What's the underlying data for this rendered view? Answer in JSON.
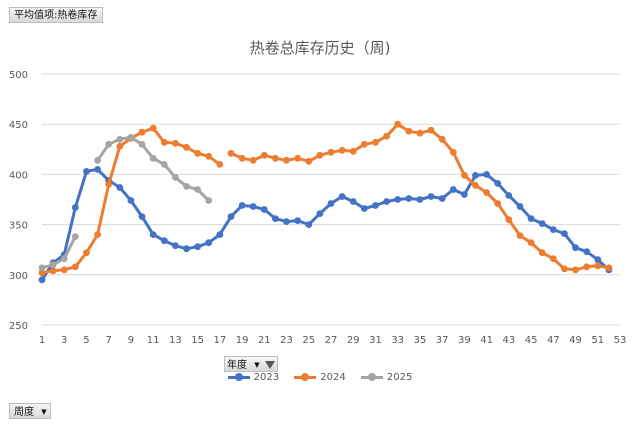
{
  "pivot": {
    "value_field": "平均值项:热卷库存",
    "series_field": "年度",
    "axis_field": "周度"
  },
  "legend": [
    "2023",
    "2024",
    "2025"
  ],
  "chart_data": {
    "type": "line",
    "title": "热卷总库存历史（周)",
    "xlabel": "",
    "ylabel": "",
    "ylim": [
      250,
      500
    ],
    "yticks": [
      250,
      300,
      350,
      400,
      450,
      500
    ],
    "xticks": [
      1,
      3,
      5,
      7,
      9,
      11,
      13,
      15,
      17,
      19,
      21,
      23,
      25,
      27,
      29,
      31,
      33,
      35,
      37,
      39,
      41,
      43,
      45,
      47,
      49,
      51,
      53
    ],
    "xlim": [
      1,
      53
    ],
    "grid": "horizontal",
    "legend_position": "bottom",
    "series": [
      {
        "name": "2023",
        "color": "#4472C4",
        "x": [
          1,
          2,
          3,
          4,
          5,
          6,
          7,
          8,
          9,
          10,
          11,
          12,
          13,
          14,
          15,
          16,
          17,
          18,
          19,
          20,
          21,
          22,
          23,
          24,
          25,
          26,
          27,
          28,
          29,
          30,
          31,
          32,
          33,
          34,
          35,
          36,
          37,
          38,
          39,
          40,
          41,
          42,
          43,
          44,
          45,
          46,
          47,
          48,
          49,
          50,
          51,
          52
        ],
        "values": [
          295,
          312,
          320,
          367,
          403,
          405,
          394,
          387,
          374,
          358,
          340,
          334,
          329,
          326,
          328,
          332,
          340,
          358,
          369,
          368,
          365,
          356,
          353,
          354,
          350,
          361,
          371,
          378,
          373,
          366,
          369,
          373,
          375,
          376,
          375,
          378,
          376,
          385,
          380,
          399,
          400,
          391,
          379,
          368,
          356,
          351,
          345,
          341,
          327,
          323,
          315,
          305
        ]
      },
      {
        "name": "2024",
        "color": "#ED7D31",
        "x": [
          1,
          2,
          3,
          4,
          5,
          6,
          7,
          8,
          9,
          10,
          11,
          12,
          13,
          14,
          15,
          16,
          17,
          null,
          18,
          19,
          20,
          21,
          22,
          23,
          24,
          25,
          26,
          27,
          28,
          29,
          30,
          31,
          32,
          33,
          34,
          35,
          36,
          37,
          38,
          39,
          40,
          41,
          42,
          43,
          44,
          45,
          46,
          47,
          48,
          49,
          50,
          51,
          52
        ],
        "values": [
          302,
          304,
          305,
          308,
          322,
          340,
          390,
          428,
          436,
          442,
          446,
          432,
          431,
          427,
          421,
          418,
          410,
          null,
          421,
          416,
          414,
          419,
          416,
          414,
          416,
          413,
          419,
          422,
          424,
          423,
          430,
          432,
          438,
          450,
          443,
          441,
          444,
          435,
          422,
          399,
          389,
          382,
          371,
          355,
          339,
          332,
          322,
          316,
          306,
          305,
          308,
          309,
          307
        ]
      },
      {
        "name": "2025",
        "color": "#A5A5A5",
        "x": [
          1,
          2,
          3,
          4,
          null,
          6,
          7,
          8,
          9,
          10,
          11,
          12,
          13,
          14,
          15,
          16
        ],
        "values": [
          307,
          310,
          316,
          338,
          null,
          414,
          430,
          435,
          437,
          430,
          416,
          410,
          397,
          388,
          385,
          374
        ]
      }
    ]
  }
}
